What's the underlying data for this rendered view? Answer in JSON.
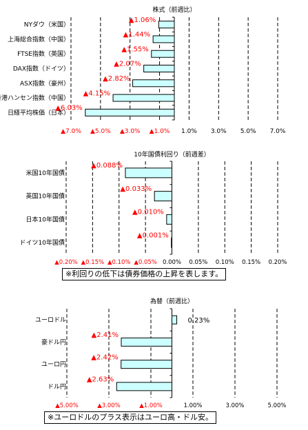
{
  "chart_data": [
    {
      "type": "bar",
      "orientation": "horizontal",
      "title": "株式（前週比）",
      "categories": [
        "NYダウ（米国）",
        "上海総合指数（中国）",
        "FTSE指数（英国）",
        "DAX指数（ドイツ）",
        "ASX指数（豪州）",
        "香港ハンセン指数（中国）",
        "日経平均株価（日本）"
      ],
      "values": [
        -1.06,
        -1.44,
        -1.55,
        -2.07,
        -2.82,
        -4.15,
        -6.03
      ],
      "data_labels": [
        "▲1.06%",
        "▲1.44%",
        "▲1.55%",
        "▲2.07%",
        "▲2.82%",
        "▲4.15%",
        "▲6.03%"
      ],
      "xlim": [
        -7,
        7
      ],
      "x_ticks": [
        -7,
        -5,
        -3,
        -1,
        1,
        3,
        5,
        7
      ],
      "x_tick_labels": [
        "▲7.0%",
        "▲5.0%",
        "▲3.0%",
        "▲1.0%",
        "1.0%",
        "3.0%",
        "5.0%",
        "7.0%"
      ],
      "grid": true,
      "bar_color": "#ccffff",
      "negative_label_color": "#ff0000",
      "positive_label_color": "#000000"
    },
    {
      "type": "bar",
      "orientation": "horizontal",
      "title": "10年国債利回り（前週差）",
      "categories": [
        "米国10年国債",
        "英国10年国債",
        "日本10年国債",
        "ドイツ10年国債"
      ],
      "values": [
        -0.088,
        -0.033,
        -0.01,
        -0.001
      ],
      "data_labels": [
        "▲0.088%",
        "▲0.033%",
        "▲0.010%",
        "▲0.001%"
      ],
      "xlim": [
        -0.2,
        0.2
      ],
      "x_ticks": [
        -0.2,
        -0.15,
        -0.1,
        -0.05,
        0,
        0.05,
        0.1,
        0.15,
        0.2
      ],
      "x_tick_labels": [
        "▲0.20%",
        "▲0.15%",
        "▲0.10%",
        "▲0.05%",
        "0.00%",
        "0.05%",
        "0.10%",
        "0.15%",
        "0.20%"
      ],
      "grid": true,
      "bar_color": "#ccffff",
      "negative_label_color": "#ff0000",
      "positive_label_color": "#000000",
      "note": "※利回りの低下は債券価格の上昇を表します。"
    },
    {
      "type": "bar",
      "orientation": "horizontal",
      "title": "為替（前週比）",
      "categories": [
        "ユーロドル",
        "豪ドル円",
        "ユーロ円",
        "ドル円"
      ],
      "values": [
        0.23,
        -2.41,
        -2.42,
        -2.63
      ],
      "data_labels": [
        "0.23%",
        "▲2.41%",
        "▲2.42%",
        "▲2.63%"
      ],
      "xlim": [
        -5,
        5
      ],
      "x_ticks": [
        -5,
        -3,
        -1,
        1,
        3,
        5
      ],
      "x_tick_labels": [
        "▲5.00%",
        "▲3.00%",
        "▲1.00%",
        "1.00%",
        "3.00%",
        "5.00%"
      ],
      "grid": true,
      "bar_color": "#ccffff",
      "negative_label_color": "#ff0000",
      "positive_label_color": "#000000",
      "note": "※ユーロドルのプラス表示はユーロ高・ドル安。"
    }
  ]
}
